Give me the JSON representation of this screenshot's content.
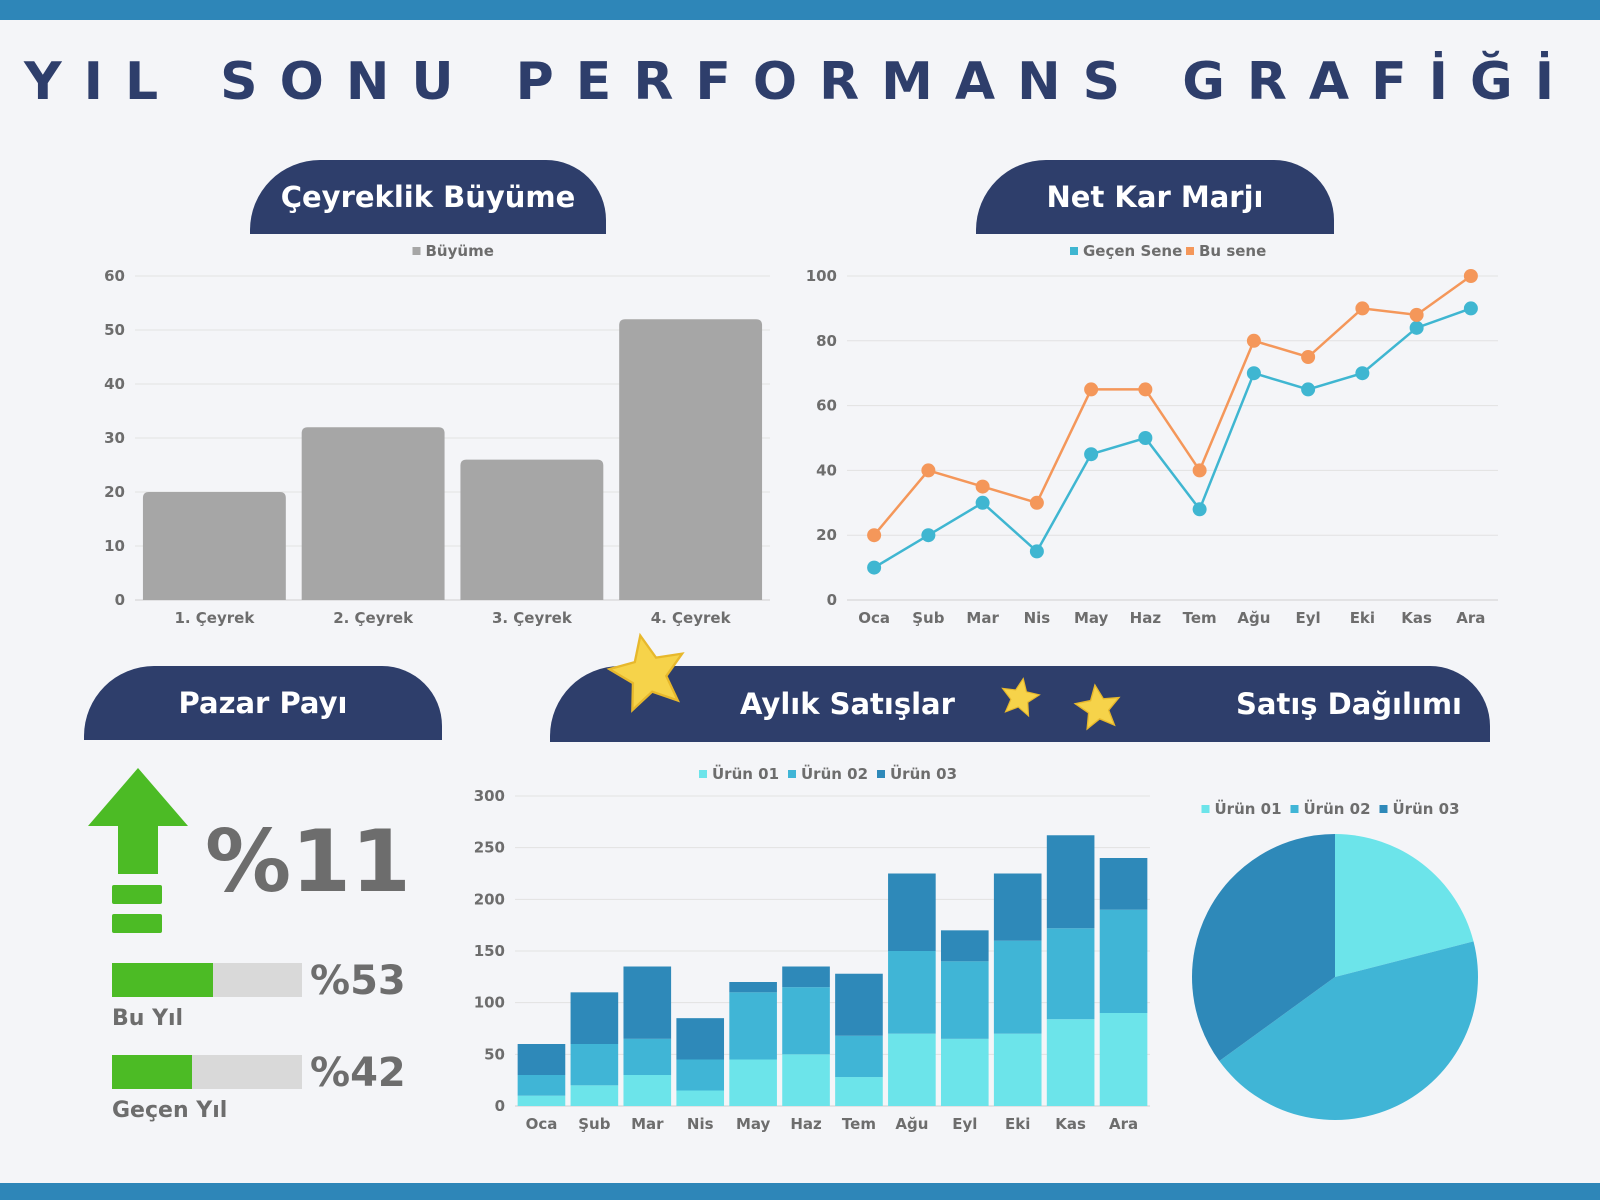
{
  "page": {
    "title": "YIL SONU PERFORMANS GRAFİĞİ"
  },
  "banners": {
    "growth": "Çeyreklik Büyüme",
    "margin": "Net Kar Marjı",
    "share": "Pazar Payı",
    "sales": "Aylık Satışlar",
    "dist": "Satış Dağılımı"
  },
  "market_share": {
    "growth_value": "%11",
    "this_year_label": "Bu Yıl",
    "this_year_value": "%53",
    "this_year_fraction": 0.53,
    "last_year_label": "Geçen Yıl",
    "last_year_value": "%42",
    "last_year_fraction": 0.42
  },
  "colors": {
    "navy": "#2e3e6b",
    "accent_blue": "#2e86b8",
    "gray_bar": "#a6a6a6",
    "green": "#4cbb25",
    "orange": "#f4975a",
    "teal": "#3fb6d1",
    "product1": "#6ce4ea",
    "product2": "#40b5d6",
    "product3": "#2e89b9"
  },
  "chart_data": [
    {
      "type": "bar",
      "categories": [
        "1. Çeyrek",
        "2. Çeyrek",
        "3. Çeyrek",
        "4. Çeyrek"
      ],
      "series": [
        {
          "name": "Büyüme",
          "values": [
            20,
            32,
            26,
            52
          ]
        }
      ],
      "ylim": [
        0,
        60
      ],
      "yticks": [
        0,
        10,
        20,
        30,
        40,
        50,
        60
      ],
      "legend": "top",
      "grid": true
    },
    {
      "type": "line",
      "categories": [
        "Oca",
        "Şub",
        "Mar",
        "Nis",
        "May",
        "Haz",
        "Tem",
        "Ağu",
        "Eyl",
        "Eki",
        "Kas",
        "Ara"
      ],
      "series": [
        {
          "name": "Geçen Sene",
          "values": [
            10,
            20,
            30,
            15,
            45,
            50,
            28,
            70,
            65,
            70,
            84,
            90
          ]
        },
        {
          "name": "Bu sene",
          "values": [
            20,
            40,
            35,
            30,
            65,
            65,
            40,
            80,
            75,
            90,
            88,
            100
          ]
        }
      ],
      "ylim": [
        0,
        100
      ],
      "yticks": [
        0,
        20,
        40,
        60,
        80,
        100
      ],
      "legend": "top",
      "grid": true
    },
    {
      "type": "bar",
      "stacked": true,
      "categories": [
        "Oca",
        "Şub",
        "Mar",
        "Nis",
        "May",
        "Haz",
        "Tem",
        "Ağu",
        "Eyl",
        "Eki",
        "Kas",
        "Ara"
      ],
      "series": [
        {
          "name": "Ürün 01",
          "values": [
            10,
            20,
            30,
            15,
            45,
            50,
            28,
            70,
            65,
            70,
            84,
            90
          ]
        },
        {
          "name": "Ürün 02",
          "values": [
            20,
            40,
            35,
            30,
            65,
            65,
            40,
            80,
            75,
            90,
            88,
            100
          ]
        },
        {
          "name": "Ürün 03",
          "values": [
            30,
            50,
            70,
            40,
            10,
            20,
            60,
            75,
            30,
            65,
            90,
            50
          ]
        }
      ],
      "ylim": [
        0,
        300
      ],
      "yticks": [
        0,
        50,
        100,
        150,
        200,
        250,
        300
      ],
      "legend": "top",
      "grid": true
    },
    {
      "type": "pie",
      "series": [
        {
          "name": "Ürün 01",
          "value": 21
        },
        {
          "name": "Ürün 02",
          "value": 44
        },
        {
          "name": "Ürün 03",
          "value": 35
        }
      ],
      "legend": "top"
    }
  ]
}
